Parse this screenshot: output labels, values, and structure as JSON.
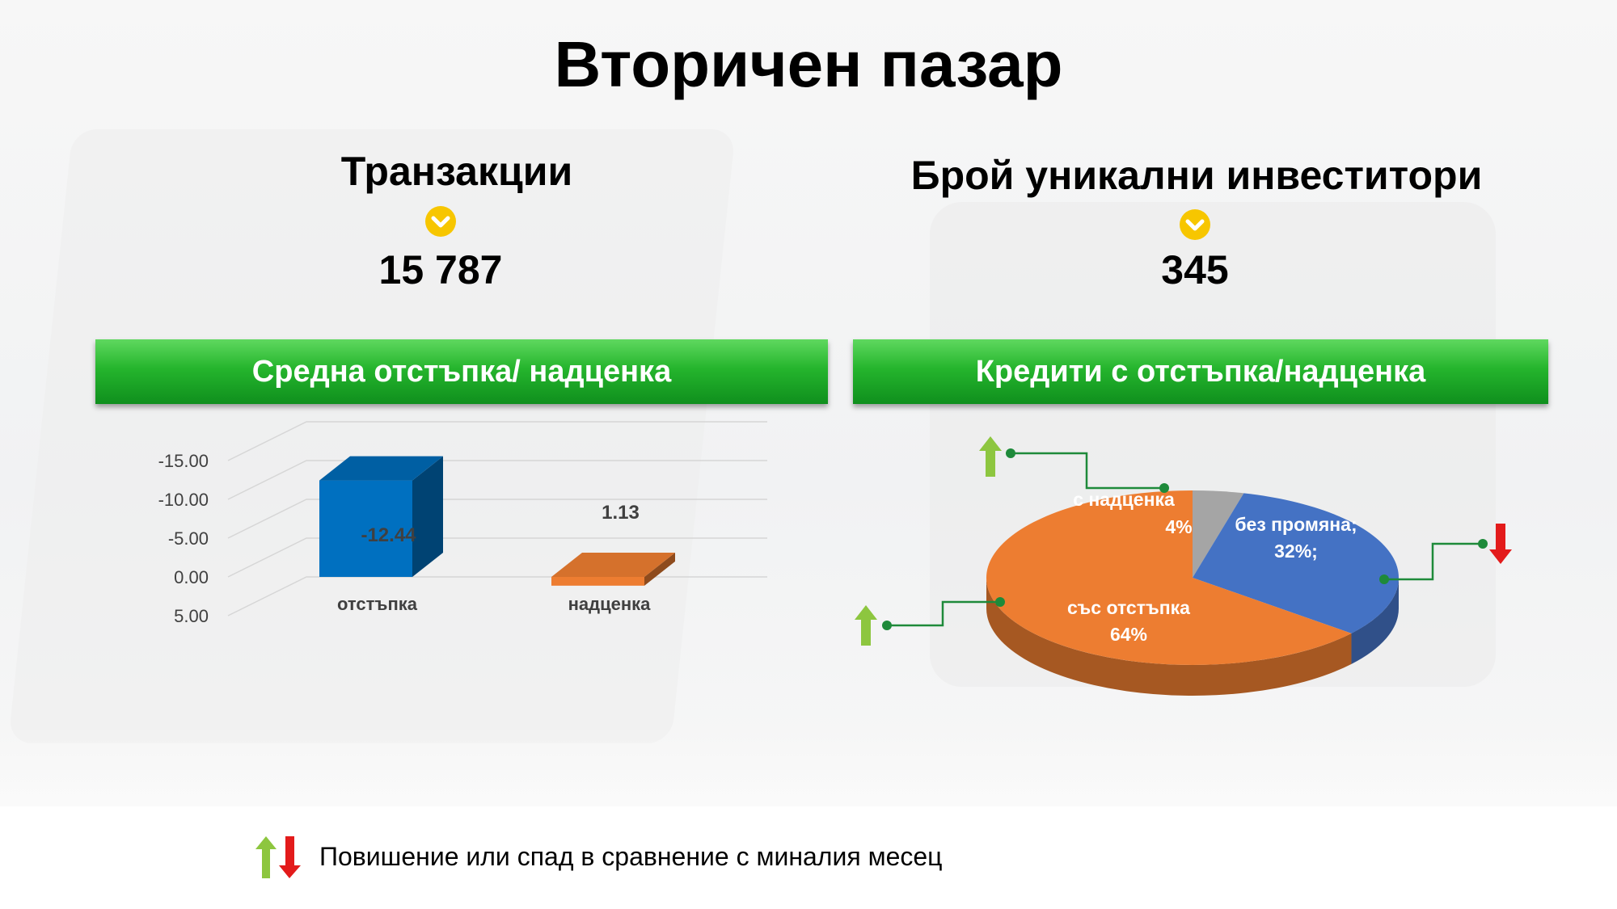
{
  "title": "Вторичен пазар",
  "left_kpi": {
    "title": "Транзакции",
    "icon": "chevron-down-icon",
    "value": "15 787"
  },
  "right_kpi": {
    "title": "Брой уникални инвеститори",
    "icon": "chevron-down-icon",
    "value": "345"
  },
  "left_banner": "Средна отстъпка/ надценка",
  "right_banner": "Кредити с отстъпка/надценка",
  "colors": {
    "banner_green": "#21b02a",
    "icon_yellow": "#f7c600",
    "up_arrow": "#8dc63f",
    "down_arrow": "#e31b1b",
    "connector": "#1e8a3a"
  },
  "chart_data": [
    {
      "type": "bar",
      "categories": [
        "отстъпка",
        "надценка"
      ],
      "values": [
        -12.44,
        1.13
      ],
      "value_labels": [
        "-12.44",
        "1.13"
      ],
      "colors": [
        "#0070c0",
        "#ed7d31"
      ],
      "yticks": [
        "5.00",
        "0.00",
        "-5.00",
        "-10.00",
        "-15.00"
      ],
      "ylim": [
        -15,
        5
      ],
      "grid": true
    },
    {
      "type": "pie",
      "slices": [
        {
          "label": "с надценка",
          "value_label": "4%",
          "value": 4,
          "color": "#a5a5a5",
          "trend": "up"
        },
        {
          "label": "без промяна;",
          "value_label": "32%;",
          "value": 32,
          "color": "#4472c4",
          "trend": "down"
        },
        {
          "label": "със отстъпка",
          "value_label": "64%",
          "value": 64,
          "color": "#ed7d31",
          "trend": "up"
        }
      ]
    }
  ],
  "legend": {
    "icon": "up-down-arrows-icon",
    "text": "Повишение или спад в сравнение с миналия месец"
  }
}
